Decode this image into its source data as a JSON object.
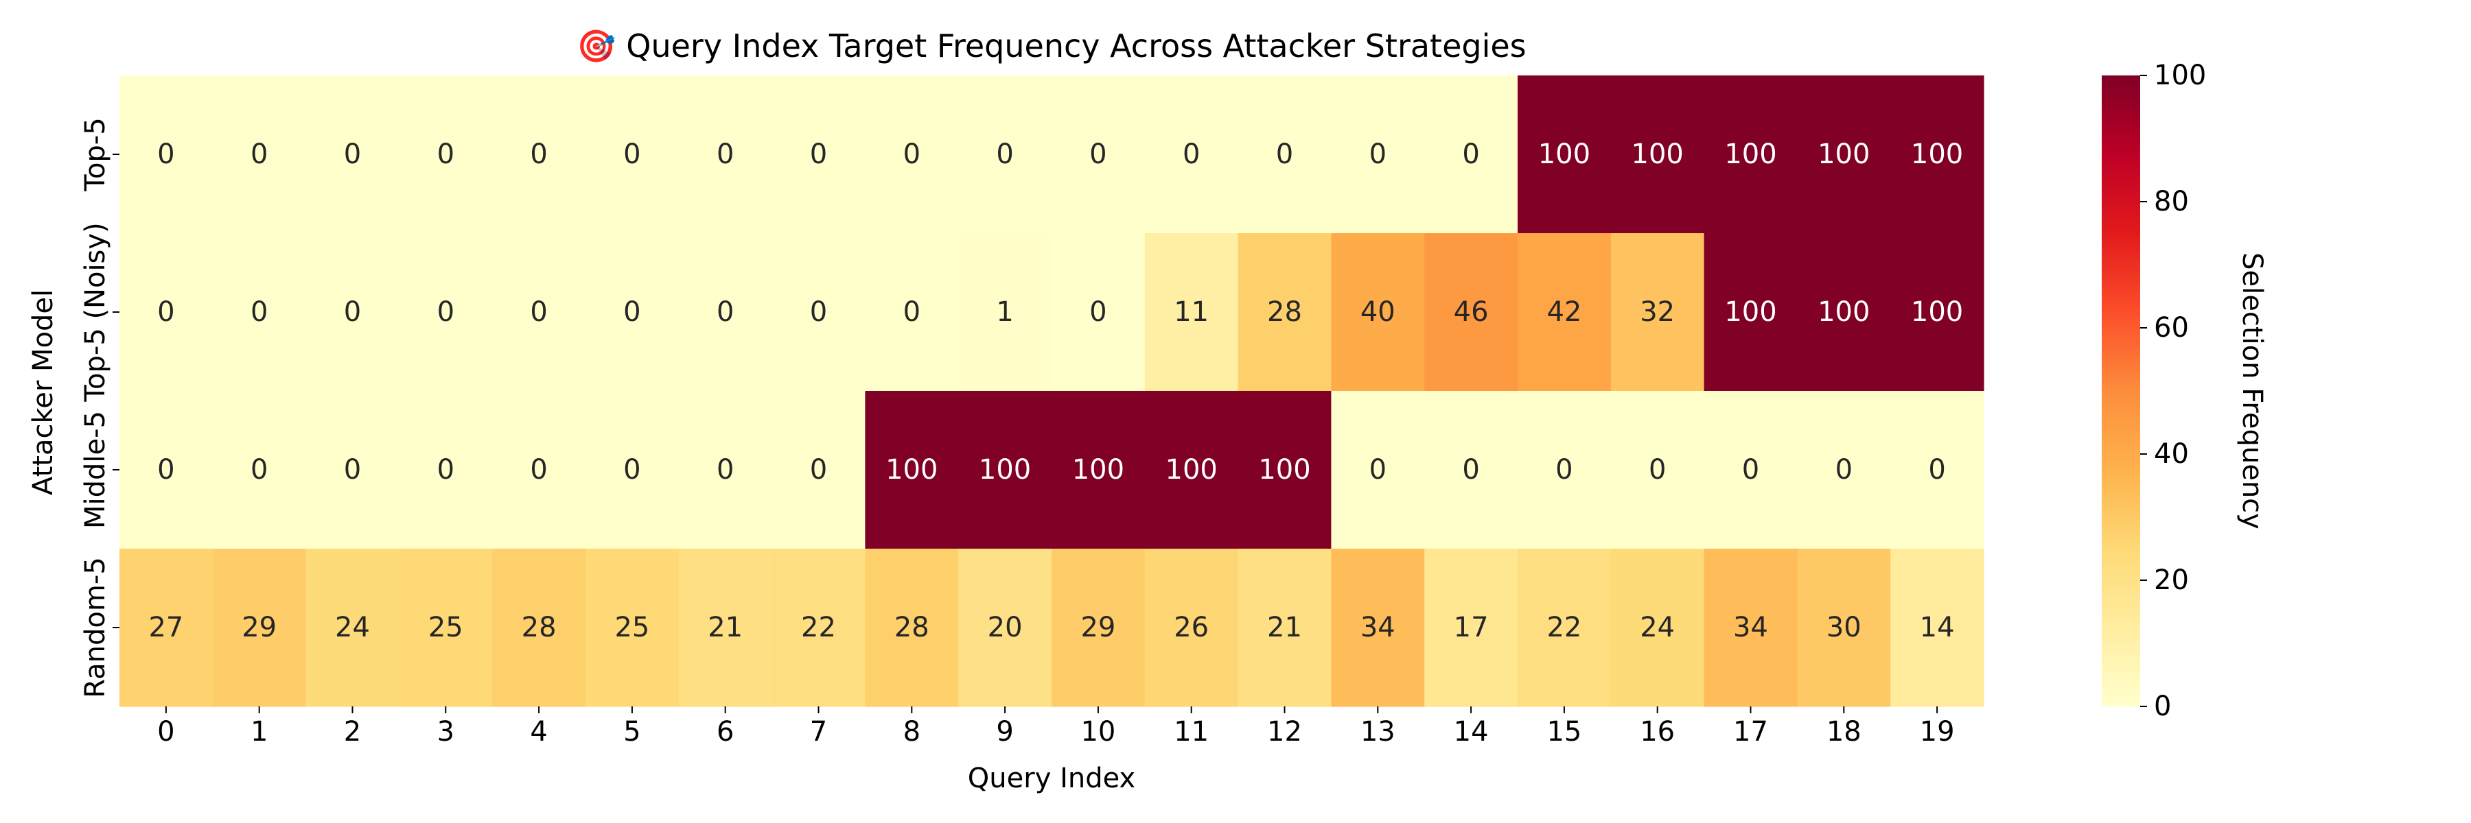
{
  "chart_data": {
    "type": "heatmap",
    "title": "🎯 Query Index Target Frequency Across Attacker Strategies",
    "xlabel": "Query Index",
    "ylabel": "Attacker Model",
    "x_categories": [
      "0",
      "1",
      "2",
      "3",
      "4",
      "5",
      "6",
      "7",
      "8",
      "9",
      "10",
      "11",
      "12",
      "13",
      "14",
      "15",
      "16",
      "17",
      "18",
      "19"
    ],
    "y_categories": [
      "Top-5",
      "Top-5 (Noisy)",
      "Middle-5",
      "Random-5"
    ],
    "values": [
      [
        0,
        0,
        0,
        0,
        0,
        0,
        0,
        0,
        0,
        0,
        0,
        0,
        0,
        0,
        0,
        100,
        100,
        100,
        100,
        100
      ],
      [
        0,
        0,
        0,
        0,
        0,
        0,
        0,
        0,
        0,
        1,
        0,
        11,
        28,
        40,
        46,
        42,
        32,
        100,
        100,
        100
      ],
      [
        0,
        0,
        0,
        0,
        0,
        0,
        0,
        0,
        100,
        100,
        100,
        100,
        100,
        0,
        0,
        0,
        0,
        0,
        0,
        0
      ],
      [
        27,
        29,
        24,
        25,
        28,
        25,
        21,
        22,
        28,
        20,
        29,
        26,
        21,
        34,
        17,
        22,
        24,
        34,
        30,
        14
      ]
    ],
    "colorbar": {
      "label": "Selection Frequency",
      "range": [
        0,
        100
      ],
      "ticks": [
        "0",
        "20",
        "40",
        "60",
        "80",
        "100"
      ],
      "colormap": "YlOrRd"
    },
    "grid": false
  }
}
